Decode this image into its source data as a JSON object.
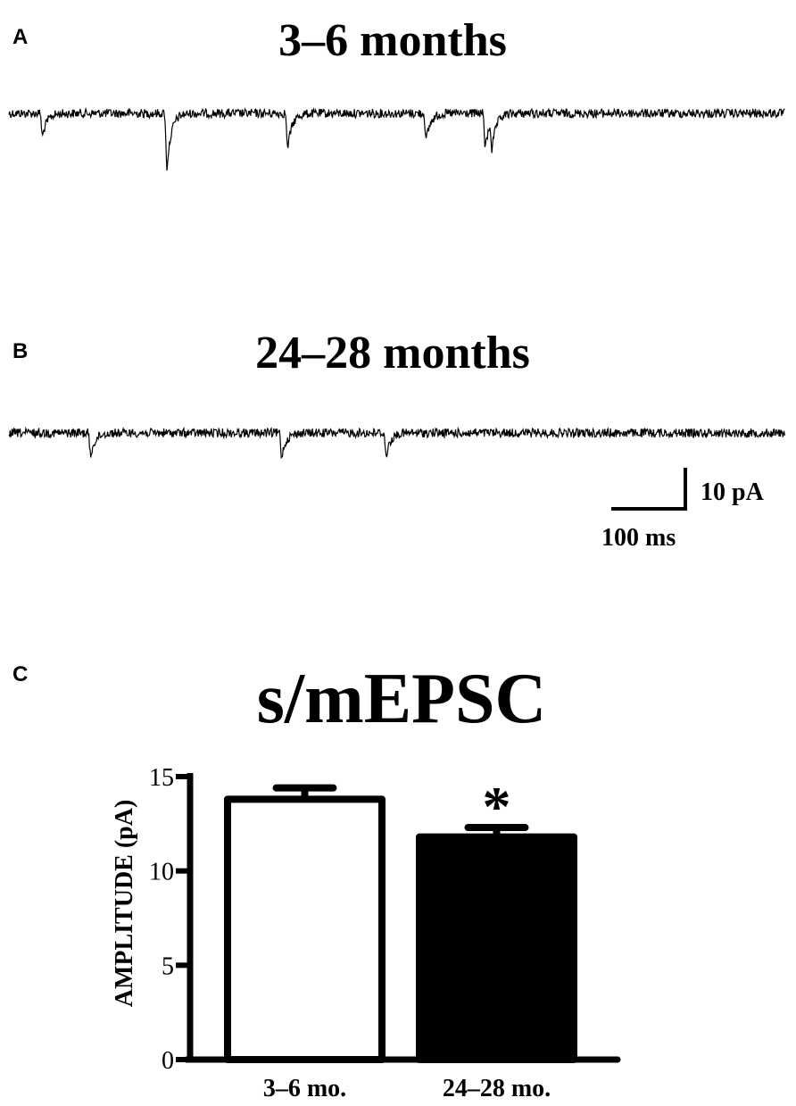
{
  "panels": {
    "a": {
      "letter": "A",
      "title": "3–6 months"
    },
    "b": {
      "letter": "B",
      "title": "24–28 months"
    },
    "c": {
      "letter": "C",
      "title": "s/mEPSC"
    }
  },
  "scale_bar": {
    "current_label": "10 pA",
    "time_label": "100 ms"
  },
  "traces": {
    "a": {
      "events_ms": [
        45,
        213,
        376,
        563,
        643,
        652
      ],
      "amplitudes_pA": [
        6,
        14,
        9,
        7,
        9,
        7
      ]
    },
    "b": {
      "events_ms": [
        110,
        368,
        509
      ],
      "amplitudes_pA": [
        6,
        6,
        6
      ]
    }
  },
  "chart_data": {
    "type": "bar",
    "title": "s/mEPSC",
    "ylabel": "AMPLITUDE (pA)",
    "xlabel": "",
    "categories": [
      "3–6 mo.",
      "24–28 mo."
    ],
    "values": [
      13.8,
      11.8
    ],
    "errors": [
      0.6,
      0.5
    ],
    "bar_fills": [
      "#ffffff",
      "#000000"
    ],
    "significance": [
      "",
      "*"
    ],
    "ylim": [
      0,
      15
    ],
    "yticks": [
      0,
      5,
      10,
      15
    ]
  }
}
